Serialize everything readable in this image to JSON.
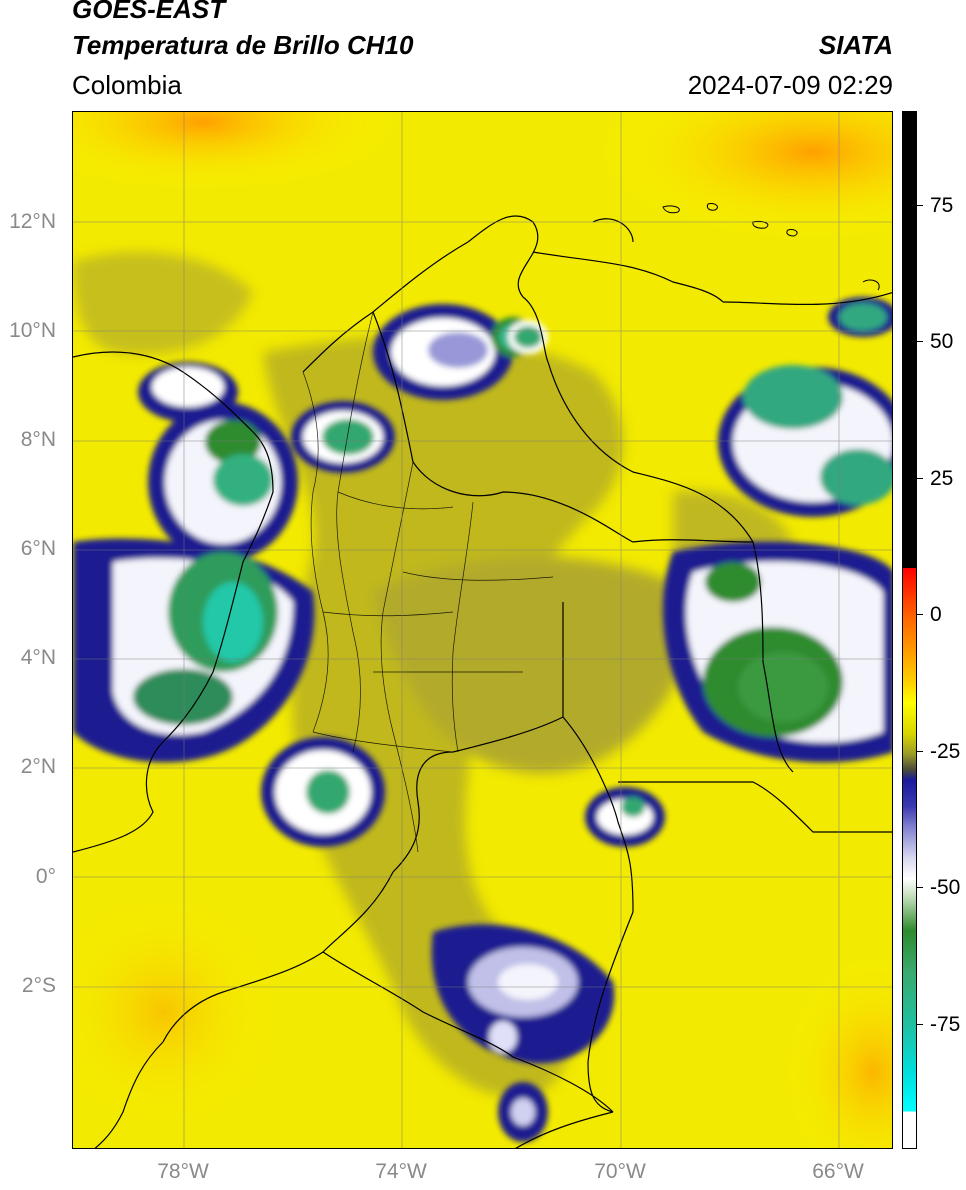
{
  "header": {
    "satellite": "GOES-EAST",
    "product": "Temperatura de Brillo CH10",
    "organization": "SIATA",
    "region": "Colombia",
    "datetime": "2024-07-09 02:29"
  },
  "map": {
    "lat_labels": [
      "12°N",
      "10°N",
      "8°N",
      "6°N",
      "4°N",
      "2°N",
      "0°",
      "2°S"
    ],
    "lon_labels": [
      "78°W",
      "74°W",
      "70°W",
      "66°W"
    ],
    "lon_range": [
      -80,
      -65
    ],
    "lat_range": [
      -5.2,
      14
    ]
  },
  "colorbar": {
    "tick_labels": [
      "75",
      "50",
      "25",
      "0",
      "-25",
      "-50",
      "-75"
    ],
    "tick_values": [
      75,
      50,
      25,
      0,
      -25,
      -50,
      -75
    ],
    "colors": {
      "warm": "#000000",
      "red": "#ff0000",
      "orange": "#ff9b00",
      "yellow": "#ffff00",
      "olive": "#9a9a28",
      "navy": "#1a1a9e",
      "white": "#ffffff",
      "green": "#2e8b2e",
      "teal": "#20c0a0",
      "cyan": "#00ffff"
    }
  }
}
